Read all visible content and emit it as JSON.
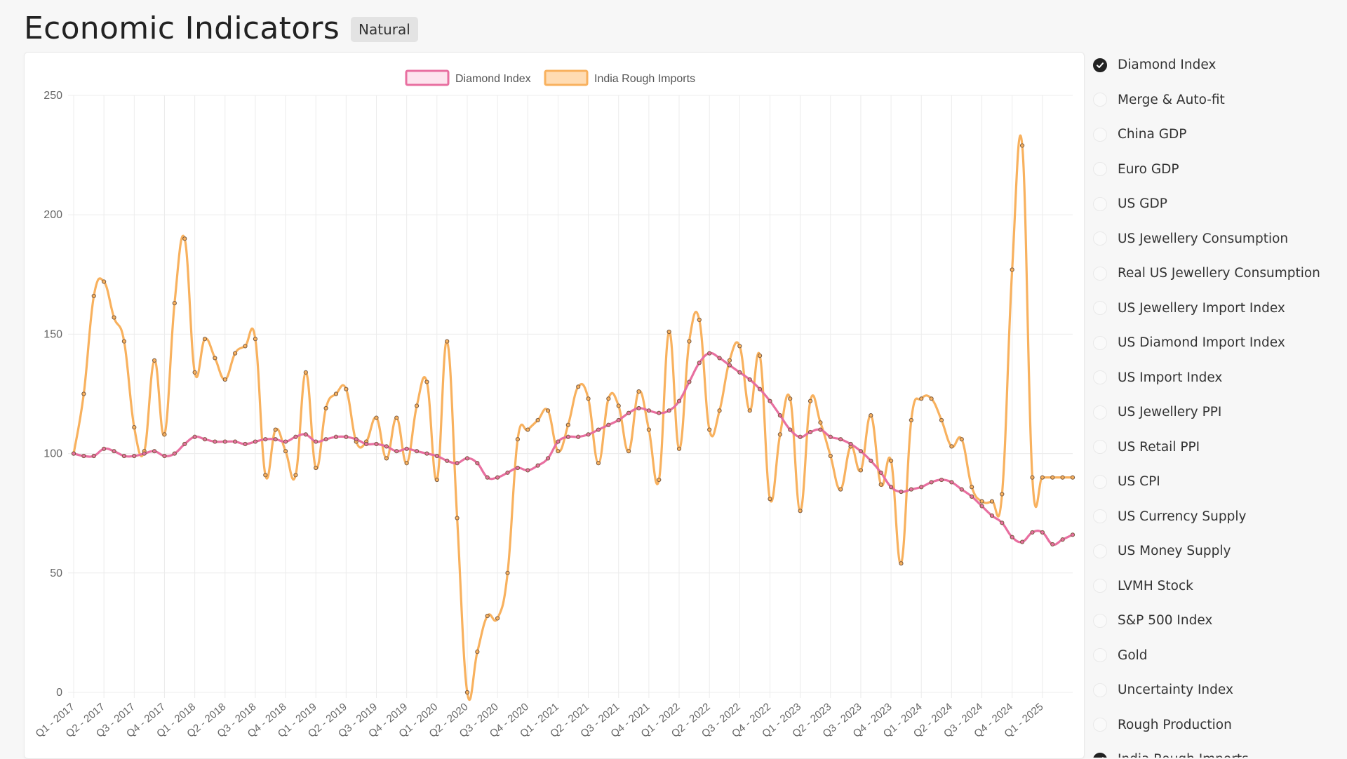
{
  "header": {
    "title": "Economic Indicators",
    "badge": "Natural"
  },
  "colors": {
    "diamond": "#e86fa0",
    "india": "#f8b15e",
    "grid": "#ececec"
  },
  "options": [
    {
      "label": "Diamond Index",
      "checked": true
    },
    {
      "label": "Merge & Auto-fit",
      "checked": false
    },
    {
      "label": "China GDP",
      "checked": false
    },
    {
      "label": "Euro GDP",
      "checked": false
    },
    {
      "label": "US GDP",
      "checked": false
    },
    {
      "label": "US Jewellery Consumption",
      "checked": false
    },
    {
      "label": "Real US Jewellery Consumption",
      "checked": false
    },
    {
      "label": "US Jewellery Import Index",
      "checked": false
    },
    {
      "label": "US Diamond Import Index",
      "checked": false
    },
    {
      "label": "US Import Index",
      "checked": false
    },
    {
      "label": "US Jewellery PPI",
      "checked": false
    },
    {
      "label": "US Retail PPI",
      "checked": false
    },
    {
      "label": "US CPI",
      "checked": false
    },
    {
      "label": "US Currency Supply",
      "checked": false
    },
    {
      "label": "US Money Supply",
      "checked": false
    },
    {
      "label": "LVMH Stock",
      "checked": false
    },
    {
      "label": "S&P 500 Index",
      "checked": false
    },
    {
      "label": "Gold",
      "checked": false
    },
    {
      "label": "Uncertainty Index",
      "checked": false
    },
    {
      "label": "Rough Production",
      "checked": false
    },
    {
      "label": "India Rough Imports",
      "checked": true
    }
  ],
  "chart_data": {
    "type": "line",
    "ylim": [
      0,
      250
    ],
    "yticks": [
      0,
      50,
      100,
      150,
      200,
      250
    ],
    "grid": true,
    "legend_position": "top",
    "x_tick_labels": [
      "Q1 - 2017",
      "Q2 - 2017",
      "Q3 - 2017",
      "Q4 - 2017",
      "Q1 - 2018",
      "Q2 - 2018",
      "Q3 - 2018",
      "Q4 - 2018",
      "Q1 - 2019",
      "Q2 - 2019",
      "Q3 - 2019",
      "Q4 - 2019",
      "Q1 - 2020",
      "Q2 - 2020",
      "Q3 - 2020",
      "Q4 - 2020",
      "Q1 - 2021",
      "Q2 - 2021",
      "Q3 - 2021",
      "Q4 - 2021",
      "Q1 - 2022",
      "Q2 - 2022",
      "Q3 - 2022",
      "Q4 - 2022",
      "Q1 - 2023",
      "Q2 - 2023",
      "Q3 - 2023",
      "Q4 - 2023",
      "Q1 - 2024",
      "Q2 - 2024",
      "Q3 - 2024",
      "Q4 - 2024",
      "Q1 - 2025"
    ],
    "points_per_tick": 3,
    "series": [
      {
        "name": "Diamond Index",
        "color": "#e86fa0",
        "values": [
          100,
          99,
          99,
          102,
          101,
          99,
          99,
          100,
          101,
          99,
          100,
          104,
          107,
          106,
          105,
          105,
          105,
          104,
          105,
          106,
          106,
          105,
          107,
          108,
          105,
          106,
          107,
          107,
          106,
          104,
          104,
          103,
          101,
          102,
          101,
          100,
          99,
          97,
          96,
          98,
          96,
          90,
          90,
          92,
          94,
          93,
          95,
          98,
          105,
          107,
          107,
          108,
          110,
          112,
          114,
          117,
          119,
          118,
          117,
          118,
          122,
          130,
          138,
          142,
          140,
          137,
          134,
          131,
          127,
          122,
          116,
          110,
          107,
          109,
          110,
          107,
          106,
          104,
          101,
          97,
          92,
          86,
          84,
          85,
          86,
          88,
          89,
          88,
          85,
          82,
          78,
          74,
          71,
          65,
          63,
          67,
          67,
          62,
          64,
          66
        ]
      },
      {
        "name": "India Rough Imports",
        "color": "#f8b15e",
        "values": [
          100,
          125,
          166,
          172,
          157,
          147,
          111,
          101,
          139,
          108,
          163,
          190,
          134,
          148,
          140,
          131,
          142,
          145,
          148,
          91,
          110,
          101,
          91,
          134,
          94,
          119,
          125,
          127,
          105,
          105,
          115,
          98,
          115,
          96,
          120,
          130,
          89,
          147,
          73,
          0,
          17,
          32,
          31,
          50,
          106,
          110,
          114,
          118,
          101,
          112,
          128,
          123,
          96,
          123,
          120,
          101,
          126,
          110,
          89,
          151,
          102,
          147,
          156,
          110,
          118,
          139,
          145,
          118,
          141,
          81,
          108,
          123,
          76,
          122,
          113,
          99,
          85,
          103,
          93,
          116,
          87,
          97,
          54,
          114,
          123,
          123,
          114,
          103,
          106,
          86,
          80,
          80,
          83,
          177,
          229,
          90,
          90,
          90,
          90,
          90
        ]
      }
    ]
  }
}
